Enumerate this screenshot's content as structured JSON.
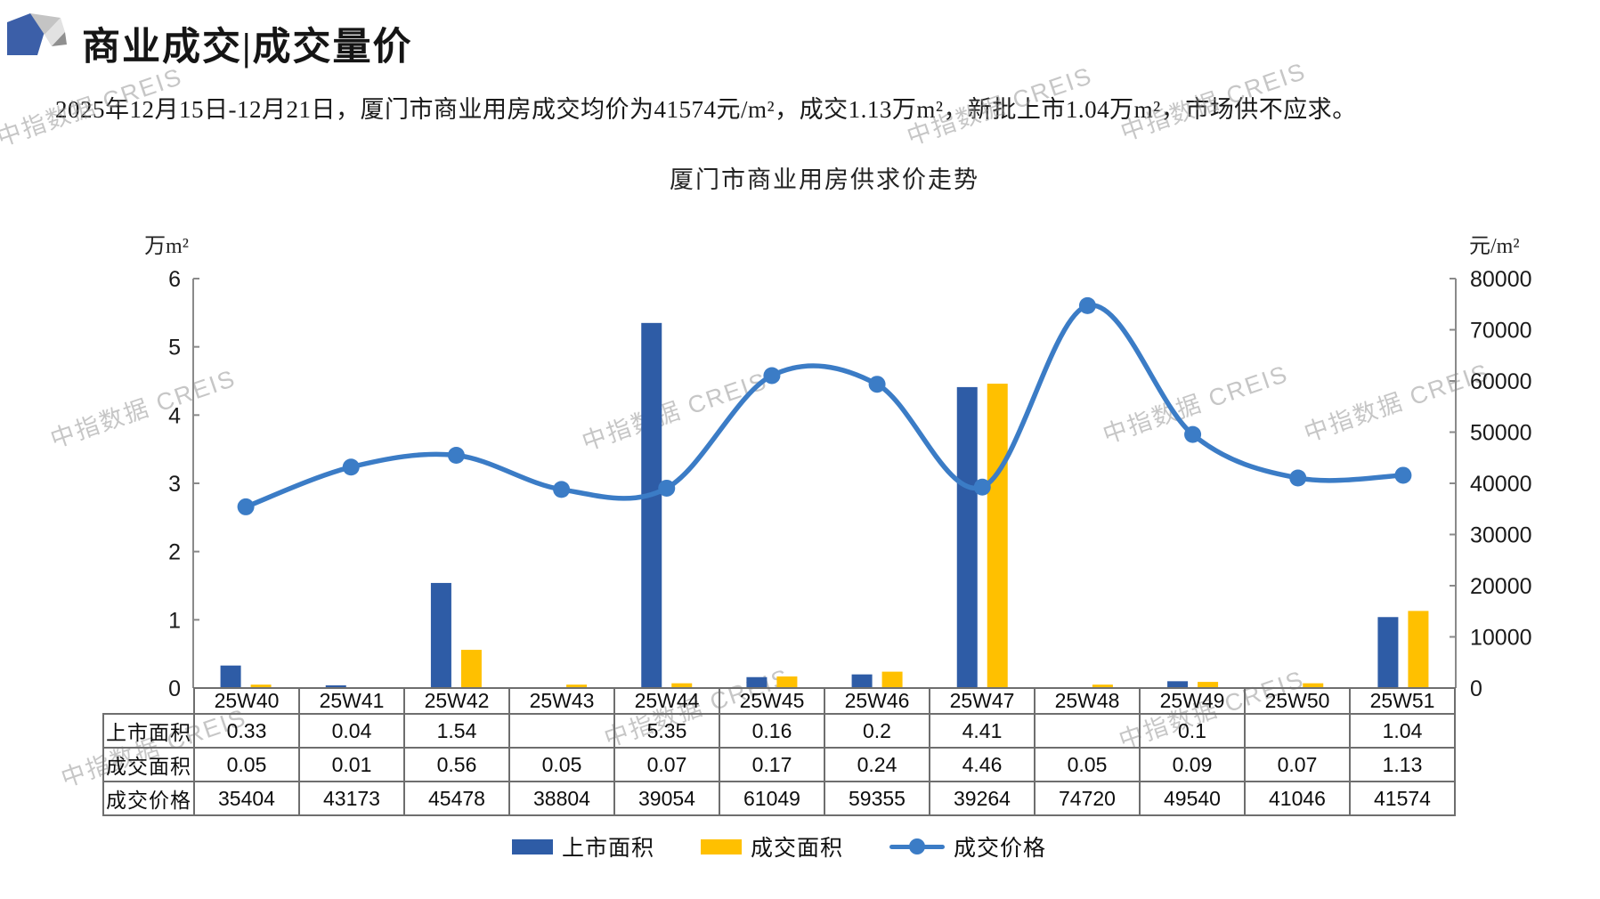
{
  "header": {
    "title": "商业成交|成交量价",
    "subtitle": "2025年12月15日-12月21日，厦门市商业用房成交均价为41574元/m²，成交1.13万m²，新批上市1.04万m²，市场供不应求。"
  },
  "watermark": {
    "text": "中指数据 CREIS"
  },
  "chart_data": {
    "type": "combo-bar-line",
    "title": "厦门市商业用房供求价走势",
    "categories": [
      "25W40",
      "25W41",
      "25W42",
      "25W43",
      "25W44",
      "25W45",
      "25W46",
      "25W47",
      "25W48",
      "25W49",
      "25W50",
      "25W51"
    ],
    "series": [
      {
        "name": "上市面积",
        "type": "bar",
        "axis": "left",
        "color": "#2E5CA6",
        "values": [
          0.33,
          0.04,
          1.54,
          null,
          5.35,
          0.16,
          0.2,
          4.41,
          null,
          0.1,
          null,
          1.04
        ]
      },
      {
        "name": "成交面积",
        "type": "bar",
        "axis": "left",
        "color": "#FFC000",
        "values": [
          0.05,
          0.01,
          0.56,
          0.05,
          0.07,
          0.17,
          0.24,
          4.46,
          0.05,
          0.09,
          0.07,
          1.13
        ]
      },
      {
        "name": "成交价格",
        "type": "line",
        "axis": "right",
        "color": "#3B7CC6",
        "values": [
          35404,
          43173,
          45478,
          38804,
          39054,
          61049,
          59355,
          39264,
          74720,
          49540,
          41046,
          41574
        ]
      }
    ],
    "left_axis": {
      "unit": "万m²",
      "min": 0,
      "max": 6,
      "step": 1
    },
    "right_axis": {
      "unit": "元/m²",
      "min": 0,
      "max": 80000,
      "step": 10000
    },
    "legend": [
      "上市面积",
      "成交面积",
      "成交价格"
    ],
    "legend_position": "bottom",
    "grid": false
  },
  "table": {
    "rows": [
      {
        "label": "上市面积",
        "cells": [
          "0.33",
          "0.04",
          "1.54",
          "",
          "5.35",
          "0.16",
          "0.2",
          "4.41",
          "",
          "0.1",
          "",
          "1.04"
        ]
      },
      {
        "label": "成交面积",
        "cells": [
          "0.05",
          "0.01",
          "0.56",
          "0.05",
          "0.07",
          "0.17",
          "0.24",
          "4.46",
          "0.05",
          "0.09",
          "0.07",
          "1.13"
        ]
      },
      {
        "label": "成交价格",
        "cells": [
          "35404",
          "43173",
          "45478",
          "38804",
          "39054",
          "61049",
          "59355",
          "39264",
          "74720",
          "49540",
          "41046",
          "41574"
        ]
      }
    ]
  }
}
